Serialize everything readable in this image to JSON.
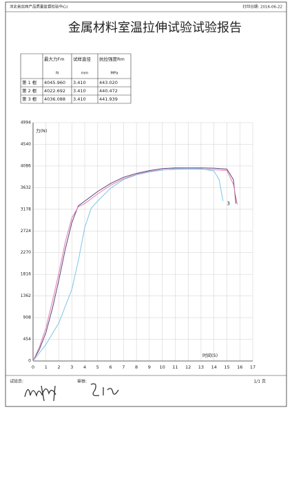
{
  "header": {
    "org": "河北省丝网产品质量监督检验中心)",
    "print_date": "打印日期: 2016-06-22"
  },
  "title": "金属材料室温拉伸试验试验报告",
  "table": {
    "columns": [
      "最大力Fm",
      "试样直径",
      "抗拉强度Rm"
    ],
    "units": [
      "N",
      "mm",
      "MPa"
    ],
    "rows": [
      [
        "第 1 根",
        "4045.960",
        "3.410",
        "443.020"
      ],
      [
        "第 2 根",
        "4022.692",
        "3.410",
        "440.472"
      ],
      [
        "第 3 根",
        "4036.088",
        "3.410",
        "441.939"
      ]
    ]
  },
  "chart_data": {
    "type": "line",
    "y_label": "力(N)",
    "x_label": "时间(S)",
    "xlim": [
      0,
      17
    ],
    "xticks": [
      0,
      1,
      2,
      3,
      4,
      5,
      6,
      7,
      8,
      9,
      10,
      11,
      12,
      13,
      14,
      15,
      16,
      17
    ],
    "ylim": [
      0,
      4994
    ],
    "yticks": [
      0,
      454,
      908,
      1362,
      1816,
      2270,
      2724,
      3178,
      3632,
      4086,
      4540,
      4994
    ],
    "grid": true,
    "series": [
      {
        "color": "#5a3f7a",
        "x": [
          0,
          0.5,
          1,
          1.5,
          2,
          2.5,
          3,
          3.5,
          4,
          5,
          6,
          7,
          8,
          9,
          10,
          11,
          12,
          13,
          14,
          15,
          15.5,
          15.7
        ],
        "values": [
          0,
          250,
          600,
          1100,
          1700,
          2350,
          2900,
          3250,
          3350,
          3550,
          3720,
          3850,
          3930,
          3990,
          4030,
          4045,
          4046,
          4046,
          4040,
          4020,
          3800,
          3300
        ]
      },
      {
        "color": "#e27ab0",
        "x": [
          0,
          0.5,
          1,
          1.5,
          2,
          2.5,
          3,
          3.5,
          4,
          5,
          6,
          7,
          8,
          9,
          10,
          11,
          12,
          13,
          14,
          15,
          15.5,
          15.8
        ],
        "values": [
          0,
          300,
          700,
          1250,
          1850,
          2500,
          3000,
          3230,
          3300,
          3500,
          3680,
          3820,
          3910,
          3970,
          4005,
          4018,
          4022,
          4020,
          4010,
          3990,
          3700,
          3280
        ]
      },
      {
        "color": "#7fc4e6",
        "x": [
          0,
          1,
          2,
          3,
          3.5,
          4,
          4.5,
          5,
          6,
          7,
          8,
          9,
          10,
          11,
          12,
          13,
          14,
          14.4,
          14.7
        ],
        "values": [
          0,
          350,
          800,
          1500,
          2100,
          2800,
          3200,
          3350,
          3620,
          3800,
          3900,
          3960,
          4000,
          4030,
          4036,
          4030,
          3980,
          3800,
          3350
        ]
      }
    ],
    "annotations": [
      {
        "text": "3",
        "x": 15.0,
        "y": 3300
      }
    ]
  },
  "footer": {
    "tester": "试验员:",
    "reviewer": "审核:",
    "page": "1/1 页"
  }
}
